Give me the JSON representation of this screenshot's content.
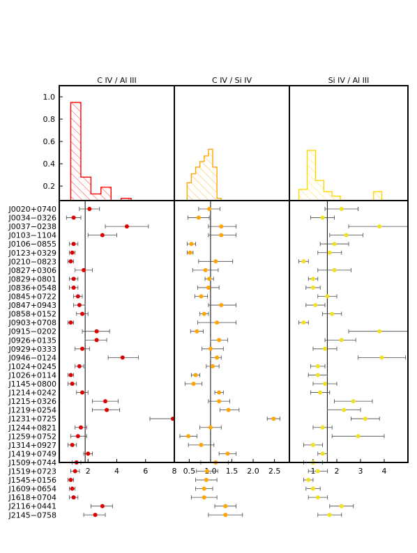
{
  "chart_data": {
    "type": "scatter",
    "ylabel_range": [
      0,
      1.1
    ],
    "y_ticks": [
      "0.2",
      "0.4",
      "0.6",
      "0.8",
      "1.0"
    ],
    "objects": [
      "J0020+0740",
      "J0034−0326",
      "J0037−0238",
      "J0103−1104",
      "J0106−0855",
      "J0123+0329",
      "J0210−0823",
      "J0827+0306",
      "J0829+0801",
      "J0836+0548",
      "J0845+0722",
      "J0847+0943",
      "J0858+0152",
      "J0903+0708",
      "J0915−0202",
      "J0926+0135",
      "J0929+0333",
      "J0946−0124",
      "J1024+0245",
      "J1026+0114",
      "J1145+0800",
      "J1214+0242",
      "J1215+0326",
      "J1219+0254",
      "J1231+0725",
      "J1244+0821",
      "J1259+0752",
      "J1314+0927",
      "J1419+0749",
      "J1509+0744",
      "J1519+0723",
      "J1545+0156",
      "J1609+0654",
      "J1618+0704",
      "J2116+0441",
      "J2145−0758"
    ],
    "panels": [
      {
        "title": "C IV / Al III",
        "color": "#ff0000",
        "marker_color": "#dd0000",
        "xlim": [
          0,
          8
        ],
        "x_ticks": [
          "2",
          "4",
          "6",
          "8"
        ],
        "x_tick_values": [
          2,
          4,
          6,
          8
        ],
        "ref_line": 1.8,
        "hist_edges": [
          0.8,
          1.5,
          2.2,
          2.9,
          3.6,
          4.3,
          5.0,
          5.7,
          6.4,
          7.1,
          7.8
        ],
        "hist_values": [
          0.95,
          0.28,
          0.13,
          0.19,
          0.0,
          0.09,
          0.0,
          0.0,
          0.0,
          0.0
        ],
        "values": [
          2.1,
          1.0,
          4.7,
          3.0,
          1.0,
          0.9,
          0.8,
          1.7,
          1.0,
          1.0,
          1.3,
          1.4,
          1.6,
          0.8,
          2.6,
          2.6,
          1.6,
          4.4,
          1.4,
          0.8,
          0.9,
          1.6,
          3.2,
          3.3,
          7.9,
          1.5,
          1.3,
          0.9,
          2.0,
          1.2,
          1.1,
          0.8,
          0.9,
          1.0,
          3.0,
          2.5
        ],
        "err_low": [
          0.7,
          0.5,
          1.5,
          1.0,
          0.3,
          0.2,
          0.2,
          0.6,
          0.3,
          0.3,
          0.3,
          0.4,
          0.4,
          0.2,
          1.0,
          0.8,
          0.5,
          1.0,
          0.3,
          0.2,
          0.3,
          0.4,
          0.9,
          1.0,
          1.6,
          0.4,
          0.5,
          0.3,
          0.3,
          0.3,
          0.3,
          0.2,
          0.2,
          0.3,
          0.8,
          0.8
        ],
        "err_high": [
          0.7,
          0.5,
          1.5,
          1.0,
          0.3,
          0.2,
          0.2,
          0.6,
          0.3,
          0.3,
          0.3,
          0.4,
          0.4,
          0.2,
          0.9,
          0.7,
          0.5,
          1.1,
          0.3,
          0.2,
          0.3,
          0.4,
          0.9,
          0.9,
          0.3,
          0.4,
          0.6,
          0.3,
          0.3,
          0.3,
          0.3,
          0.2,
          0.2,
          0.3,
          0.7,
          0.7
        ]
      },
      {
        "title": "C IV / Si IV",
        "color": "#ffa500",
        "marker_color": "#ffa500",
        "xlim": [
          0.15,
          2.85
        ],
        "x_ticks": [
          "0.5",
          "1.0",
          "1.5",
          "2.0",
          "2.5"
        ],
        "x_tick_values": [
          0.5,
          1.0,
          1.5,
          2.0,
          2.5
        ],
        "ref_line": 1.0,
        "hist_edges": [
          0.45,
          0.55,
          0.65,
          0.75,
          0.85,
          0.95,
          1.05,
          1.15,
          1.25,
          1.35,
          1.45
        ],
        "hist_values": [
          0.23,
          0.31,
          0.37,
          0.42,
          0.47,
          0.53,
          0.37,
          0.09,
          0.0,
          0.0
        ],
        "values": [
          0.97,
          0.72,
          1.25,
          1.25,
          0.55,
          0.52,
          1.12,
          0.88,
          0.97,
          0.95,
          0.78,
          1.25,
          0.85,
          1.15,
          0.68,
          1.2,
          1.0,
          1.15,
          1.05,
          0.65,
          0.6,
          1.2,
          1.2,
          1.42,
          2.48,
          1.0,
          0.48,
          0.78,
          1.4,
          1.12,
          0.92,
          0.9,
          0.85,
          0.85,
          1.35,
          1.35
        ],
        "err_low": [
          0.25,
          0.25,
          0.3,
          0.3,
          0.1,
          0.07,
          0.4,
          0.3,
          0.1,
          0.25,
          0.15,
          0.3,
          0.1,
          0.45,
          0.15,
          0.2,
          0.2,
          0.15,
          0.15,
          0.1,
          0.2,
          0.1,
          0.25,
          0.2,
          0.15,
          0.25,
          0.2,
          0.3,
          0.2,
          0.35,
          0.25,
          0.25,
          0.2,
          0.3,
          0.25,
          0.4
        ],
        "err_high": [
          0.25,
          0.25,
          0.35,
          0.35,
          0.1,
          0.07,
          0.4,
          0.3,
          0.1,
          0.25,
          0.15,
          0.35,
          0.1,
          0.45,
          0.15,
          0.2,
          0.3,
          0.1,
          0.15,
          0.1,
          0.2,
          0.1,
          0.25,
          0.25,
          0.15,
          0.25,
          0.2,
          0.3,
          0.2,
          0.3,
          0.25,
          0.25,
          0.2,
          0.3,
          0.25,
          0.4
        ]
      },
      {
        "title": "Si IV / Al III",
        "color": "#ffd700",
        "marker_color": "#f0e020",
        "xlim": [
          0.0,
          5.0
        ],
        "x_ticks": [
          "1",
          "2",
          "3",
          "4"
        ],
        "x_tick_values": [
          1,
          2,
          3,
          4
        ],
        "ref_line": 1.6,
        "hist_edges": [
          0.4,
          0.75,
          1.1,
          1.45,
          1.8,
          2.15,
          2.5,
          2.85,
          3.2,
          3.55,
          3.9
        ],
        "hist_values": [
          0.17,
          0.52,
          0.25,
          0.15,
          0.11,
          0.07,
          0.0,
          0.0,
          0.0,
          0.15
        ],
        "values": [
          2.2,
          1.4,
          3.8,
          2.4,
          1.9,
          1.7,
          0.6,
          1.9,
          1.0,
          1.0,
          1.6,
          1.1,
          1.8,
          0.6,
          3.8,
          2.2,
          1.5,
          3.9,
          1.2,
          1.2,
          1.5,
          1.3,
          2.7,
          2.3,
          3.2,
          1.4,
          2.9,
          1.0,
          1.4,
          1.0,
          1.2,
          0.8,
          1.0,
          1.2,
          2.2,
          1.7
        ],
        "err_low": [
          0.7,
          0.5,
          1.3,
          0.7,
          0.6,
          0.5,
          0.2,
          0.7,
          0.2,
          0.3,
          0.4,
          0.4,
          0.4,
          0.2,
          1.3,
          0.7,
          0.5,
          1.0,
          0.3,
          0.4,
          0.5,
          0.4,
          0.8,
          0.7,
          0.6,
          0.4,
          1.1,
          0.4,
          0.2,
          0.4,
          0.4,
          0.2,
          0.3,
          0.4,
          0.5,
          0.5
        ],
        "err_high": [
          0.7,
          0.5,
          1.3,
          0.7,
          0.6,
          0.5,
          0.2,
          0.7,
          0.2,
          0.3,
          0.4,
          0.4,
          0.4,
          0.2,
          1.3,
          0.6,
          0.5,
          1.0,
          0.3,
          0.4,
          0.5,
          0.4,
          0.8,
          0.7,
          0.6,
          0.4,
          1.1,
          0.4,
          0.2,
          0.4,
          0.4,
          0.2,
          0.3,
          0.4,
          0.5,
          0.5
        ]
      }
    ]
  }
}
